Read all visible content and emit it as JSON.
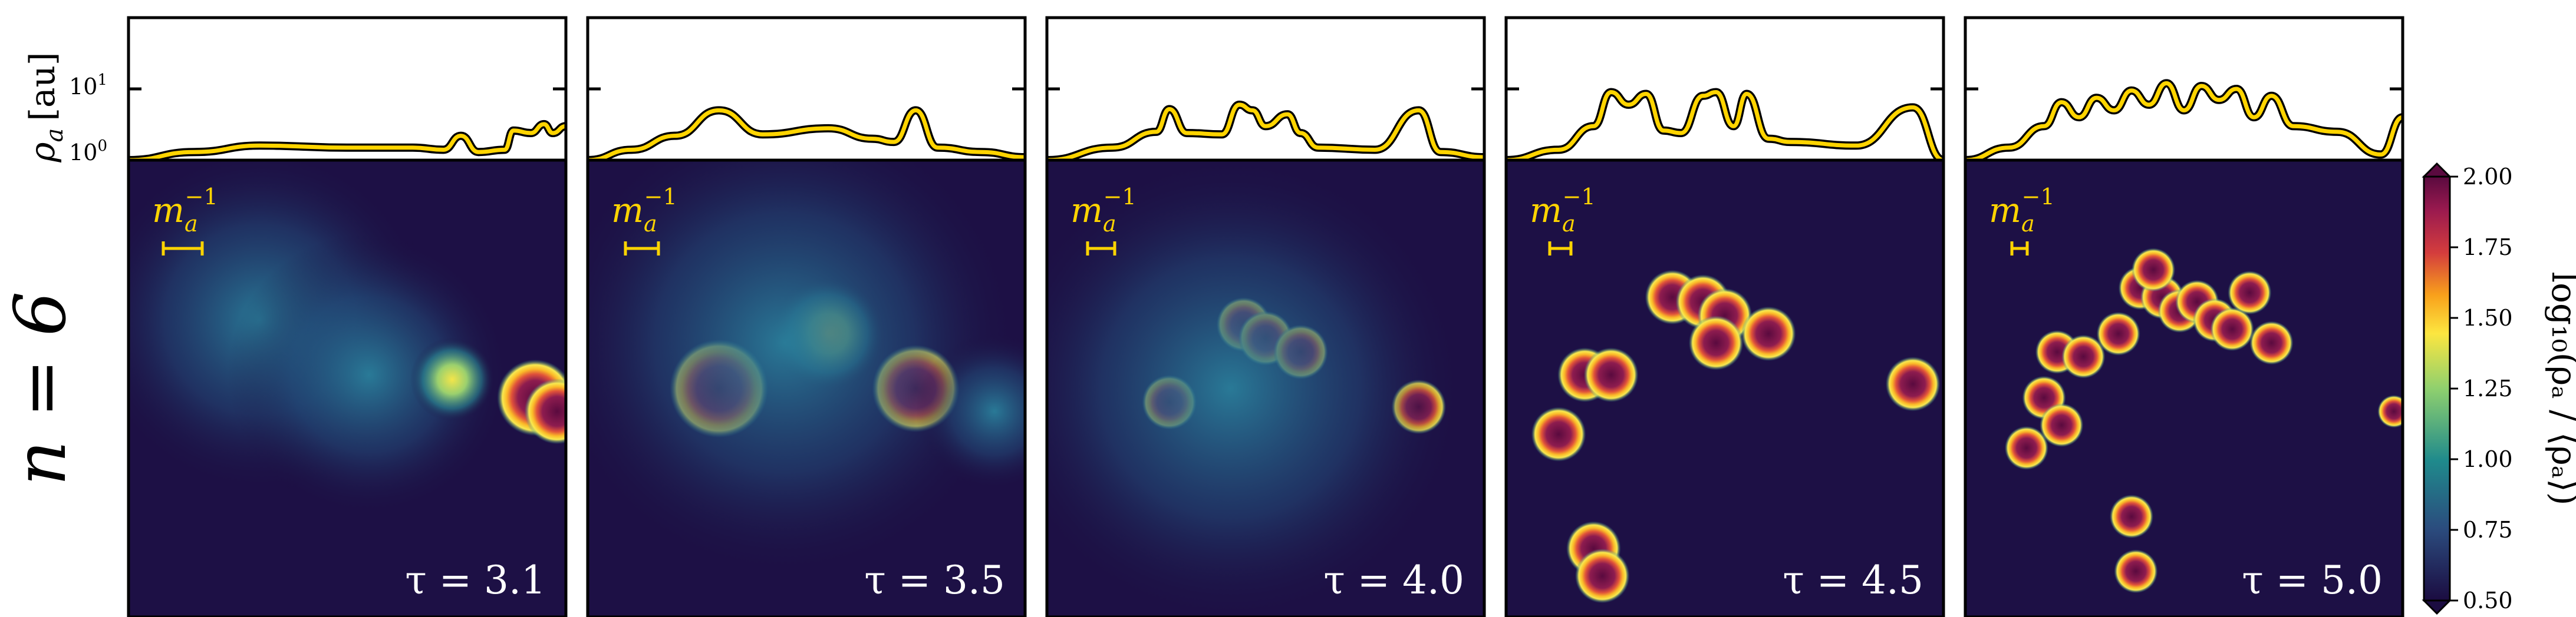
{
  "figure": {
    "row_label": "n = 6",
    "ylabel_top": "ρ",
    "ylabel_top_sub": "a",
    "ylabel_top_unit": "[au]",
    "top_ticks": [
      "10",
      "10"
    ],
    "top_tick_exps": [
      "0",
      "1"
    ],
    "scale_label": "m",
    "scale_label_sub": "a",
    "scale_label_sup": "−1",
    "colorbar_label": "log₁₀(ρₐ / ⟨ρₐ⟩)",
    "colorbar_ticks": [
      "2.00",
      "1.75",
      "1.50",
      "1.25",
      "1.00",
      "0.75",
      "0.50"
    ]
  },
  "chart_data": [
    {
      "type": "heatmap",
      "panel_label": "τ = 3.1",
      "tau": 3.1,
      "colorbar_range": [
        0.5,
        2.0
      ],
      "yscale_top": "log",
      "ylim_top": [
        1,
        100
      ],
      "blobs": [
        {
          "x": 0.3,
          "y": 0.35,
          "size": 0.22,
          "level": 0.85
        },
        {
          "x": 0.55,
          "y": 0.47,
          "size": 0.18,
          "level": 0.95
        },
        {
          "x": 0.74,
          "y": 0.48,
          "size": 0.06,
          "level": 1.4
        },
        {
          "x": 0.93,
          "y": 0.52,
          "size": 0.07,
          "level": 1.9
        },
        {
          "x": 0.98,
          "y": 0.55,
          "size": 0.06,
          "level": 1.9
        }
      ],
      "density_profile": {
        "x": [
          0,
          0.15,
          0.3,
          0.5,
          0.65,
          0.72,
          0.76,
          0.8,
          0.86,
          0.88,
          0.92,
          0.95,
          0.97,
          1.0
        ],
        "y": [
          1.0,
          1.3,
          1.6,
          1.5,
          1.5,
          1.4,
          2.2,
          1.3,
          1.4,
          2.6,
          2.4,
          3.2,
          2.4,
          3.0
        ]
      }
    },
    {
      "type": "heatmap",
      "panel_label": "τ = 3.5",
      "tau": 3.5,
      "colorbar_range": [
        0.5,
        2.0
      ],
      "yscale_top": "log",
      "ylim_top": [
        1,
        100
      ],
      "blobs": [
        {
          "x": 0.3,
          "y": 0.5,
          "size": 0.09,
          "level": 2.0
        },
        {
          "x": 0.55,
          "y": 0.38,
          "size": 0.08,
          "level": 1.45
        },
        {
          "x": 0.75,
          "y": 0.5,
          "size": 0.08,
          "level": 2.0
        },
        {
          "x": 0.45,
          "y": 0.4,
          "size": 0.3,
          "level": 0.9
        },
        {
          "x": 0.93,
          "y": 0.55,
          "size": 0.1,
          "level": 0.85
        }
      ],
      "density_profile": {
        "x": [
          0,
          0.1,
          0.2,
          0.3,
          0.4,
          0.55,
          0.65,
          0.7,
          0.75,
          0.8,
          0.9,
          1.0
        ],
        "y": [
          1.0,
          1.4,
          2.2,
          5.0,
          2.3,
          2.8,
          2.0,
          1.8,
          5.0,
          1.5,
          1.3,
          1.1
        ]
      }
    },
    {
      "type": "heatmap",
      "panel_label": "τ = 4.0",
      "tau": 4.0,
      "colorbar_range": [
        0.5,
        2.0
      ],
      "yscale_top": "log",
      "ylim_top": [
        1,
        100
      ],
      "blobs": [
        {
          "x": 0.28,
          "y": 0.53,
          "size": 0.05,
          "level": 2.0
        },
        {
          "x": 0.45,
          "y": 0.36,
          "size": 0.05,
          "level": 2.0
        },
        {
          "x": 0.5,
          "y": 0.39,
          "size": 0.05,
          "level": 2.0
        },
        {
          "x": 0.58,
          "y": 0.42,
          "size": 0.05,
          "level": 2.0
        },
        {
          "x": 0.85,
          "y": 0.54,
          "size": 0.05,
          "level": 2.0
        },
        {
          "x": 0.42,
          "y": 0.5,
          "size": 0.3,
          "level": 0.95
        }
      ],
      "density_profile": {
        "x": [
          0,
          0.15,
          0.25,
          0.28,
          0.32,
          0.4,
          0.44,
          0.47,
          0.5,
          0.55,
          0.58,
          0.62,
          0.75,
          0.85,
          0.9,
          1.0
        ],
        "y": [
          1.0,
          1.5,
          2.5,
          5.2,
          2.4,
          2.3,
          6.0,
          5.0,
          3.0,
          4.4,
          2.4,
          1.5,
          1.4,
          5.0,
          1.3,
          1.1
        ]
      }
    },
    {
      "type": "heatmap",
      "panel_label": "τ = 4.5",
      "tau": 4.5,
      "colorbar_range": [
        0.5,
        2.0
      ],
      "yscale_top": "log",
      "ylim_top": [
        1,
        100
      ],
      "blobs": [
        {
          "x": 0.38,
          "y": 0.3,
          "size": 0.05,
          "level": 2.0
        },
        {
          "x": 0.45,
          "y": 0.31,
          "size": 0.05,
          "level": 2.0
        },
        {
          "x": 0.5,
          "y": 0.34,
          "size": 0.05,
          "level": 2.0
        },
        {
          "x": 0.48,
          "y": 0.4,
          "size": 0.05,
          "level": 2.0
        },
        {
          "x": 0.6,
          "y": 0.38,
          "size": 0.05,
          "level": 2.0
        },
        {
          "x": 0.18,
          "y": 0.47,
          "size": 0.05,
          "level": 2.0
        },
        {
          "x": 0.24,
          "y": 0.47,
          "size": 0.05,
          "level": 2.0
        },
        {
          "x": 0.12,
          "y": 0.6,
          "size": 0.05,
          "level": 2.0
        },
        {
          "x": 0.2,
          "y": 0.85,
          "size": 0.05,
          "level": 2.0
        },
        {
          "x": 0.22,
          "y": 0.91,
          "size": 0.05,
          "level": 2.0
        },
        {
          "x": 0.93,
          "y": 0.49,
          "size": 0.05,
          "level": 2.0
        }
      ],
      "density_profile": {
        "x": [
          0,
          0.12,
          0.2,
          0.24,
          0.28,
          0.32,
          0.36,
          0.4,
          0.45,
          0.48,
          0.52,
          0.55,
          0.6,
          0.65,
          0.8,
          0.93,
          1.0
        ],
        "y": [
          1.0,
          1.4,
          3.0,
          9.0,
          6.0,
          8.5,
          2.6,
          2.4,
          8.0,
          9.0,
          3.0,
          8.5,
          2.0,
          1.8,
          1.6,
          5.5,
          1.0
        ]
      }
    },
    {
      "type": "heatmap",
      "panel_label": "τ = 5.0",
      "tau": 5.0,
      "colorbar_range": [
        0.5,
        2.0
      ],
      "yscale_top": "log",
      "ylim_top": [
        1,
        100
      ],
      "blobs": [
        {
          "x": 0.4,
          "y": 0.28,
          "size": 0.04,
          "level": 2.0
        },
        {
          "x": 0.45,
          "y": 0.3,
          "size": 0.04,
          "level": 2.0
        },
        {
          "x": 0.49,
          "y": 0.33,
          "size": 0.04,
          "level": 2.0
        },
        {
          "x": 0.53,
          "y": 0.31,
          "size": 0.04,
          "level": 2.0
        },
        {
          "x": 0.57,
          "y": 0.35,
          "size": 0.04,
          "level": 2.0
        },
        {
          "x": 0.61,
          "y": 0.37,
          "size": 0.04,
          "level": 2.0
        },
        {
          "x": 0.43,
          "y": 0.24,
          "size": 0.04,
          "level": 2.0
        },
        {
          "x": 0.35,
          "y": 0.38,
          "size": 0.04,
          "level": 2.0
        },
        {
          "x": 0.21,
          "y": 0.42,
          "size": 0.04,
          "level": 2.0
        },
        {
          "x": 0.27,
          "y": 0.43,
          "size": 0.04,
          "level": 2.0
        },
        {
          "x": 0.18,
          "y": 0.52,
          "size": 0.04,
          "level": 2.0
        },
        {
          "x": 0.22,
          "y": 0.58,
          "size": 0.04,
          "level": 2.0
        },
        {
          "x": 0.14,
          "y": 0.63,
          "size": 0.04,
          "level": 2.0
        },
        {
          "x": 0.7,
          "y": 0.4,
          "size": 0.04,
          "level": 2.0
        },
        {
          "x": 0.38,
          "y": 0.78,
          "size": 0.04,
          "level": 2.0
        },
        {
          "x": 0.39,
          "y": 0.9,
          "size": 0.04,
          "level": 2.0
        },
        {
          "x": 0.65,
          "y": 0.29,
          "size": 0.04,
          "level": 2.0
        },
        {
          "x": 0.98,
          "y": 0.55,
          "size": 0.03,
          "level": 2.0
        }
      ],
      "density_profile": {
        "x": [
          0,
          0.1,
          0.18,
          0.22,
          0.26,
          0.3,
          0.34,
          0.38,
          0.42,
          0.46,
          0.5,
          0.54,
          0.58,
          0.62,
          0.66,
          0.7,
          0.75,
          0.85,
          0.95,
          1.0
        ],
        "y": [
          1.0,
          1.5,
          3.0,
          6.5,
          4.0,
          7.5,
          5.0,
          9.5,
          6.0,
          12.0,
          5.0,
          11.0,
          7.0,
          10.0,
          4.0,
          8.0,
          3.0,
          2.5,
          1.2,
          4.0
        ]
      }
    }
  ]
}
